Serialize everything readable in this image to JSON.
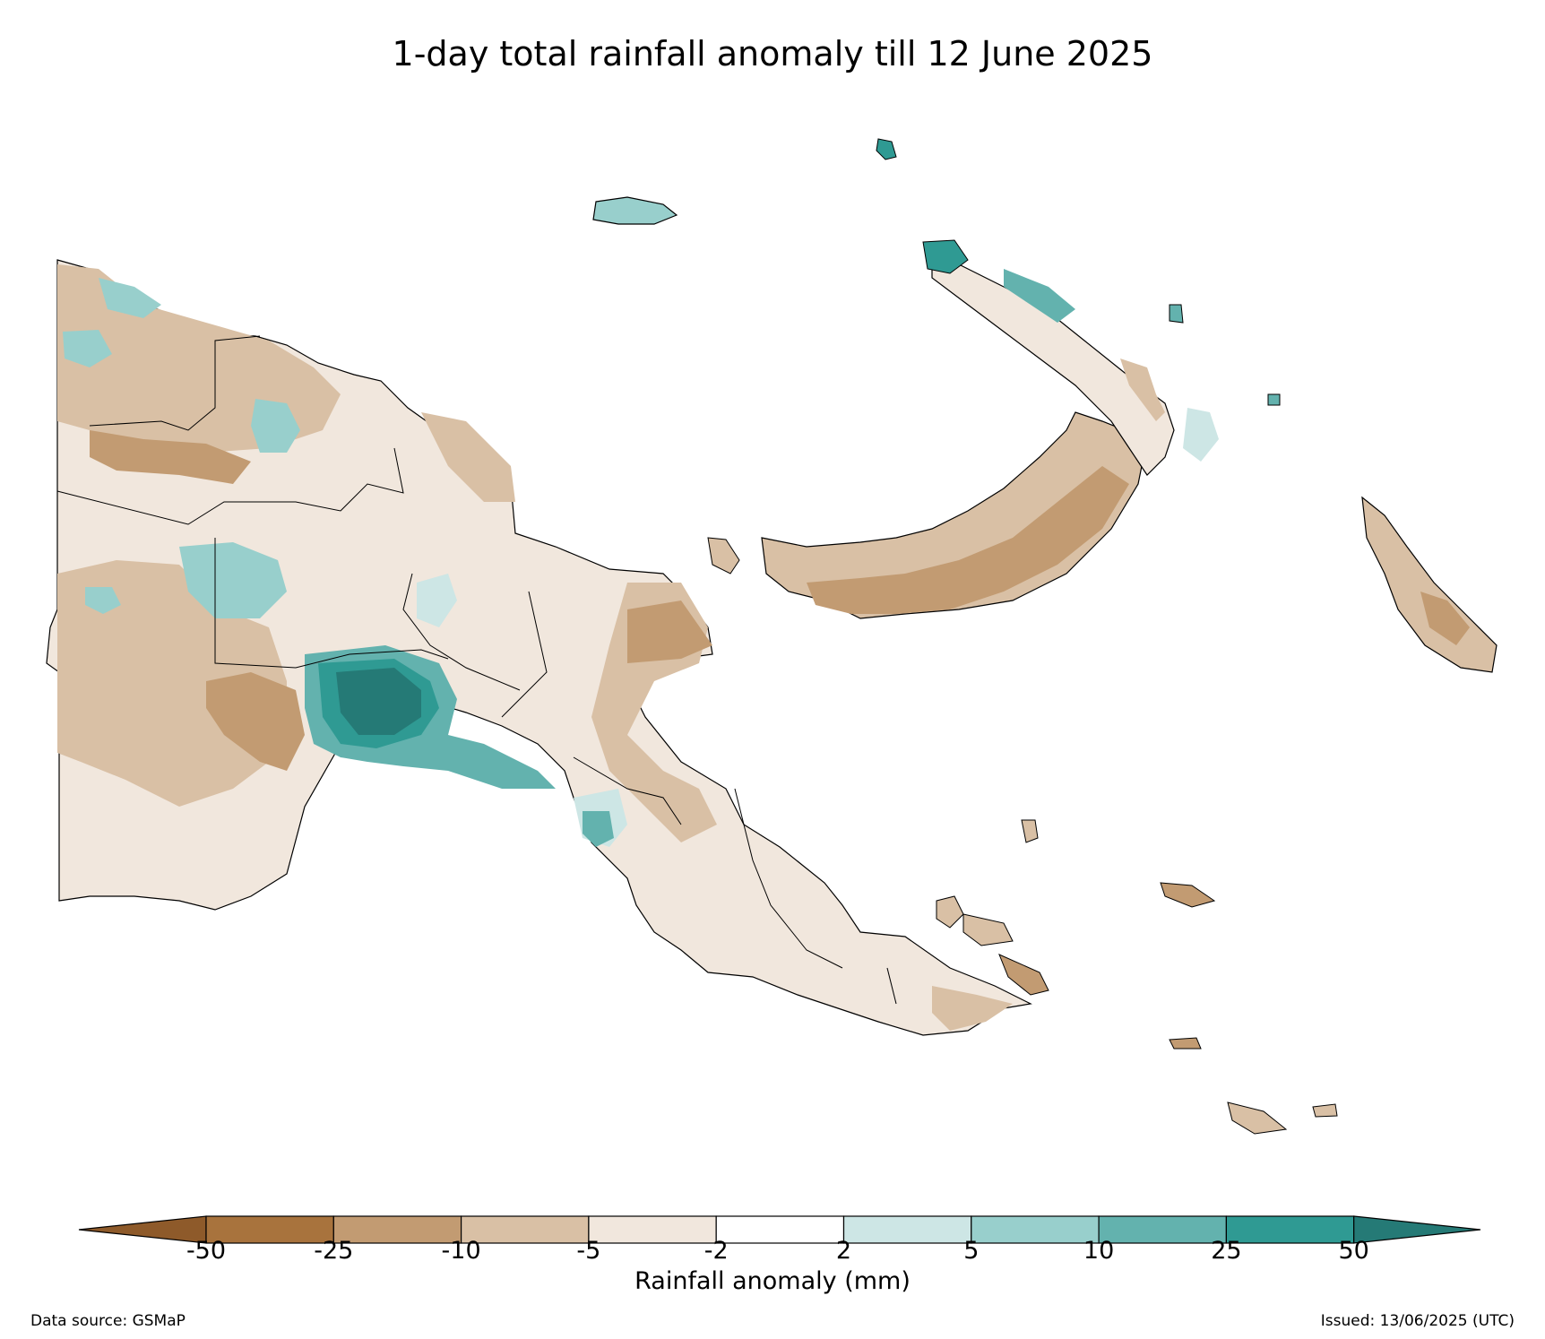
{
  "title": "1-day total rainfall anomaly till 12 June 2025",
  "legend": {
    "label": "Rainfall anomaly (mm)",
    "ticks": [
      "-50",
      "-25",
      "-10",
      "-5",
      "-2",
      "2",
      "5",
      "10",
      "25",
      "50"
    ],
    "colors": {
      "lt_neg50": "#8e5a2a",
      "neg50_neg25": "#a8733d",
      "neg25_neg10": "#c29b72",
      "neg10_neg5": "#d9c0a5",
      "neg5_neg2": "#f1e7dd",
      "neg2_2": "#ffffff",
      "2_5": "#cde6e5",
      "5_10": "#98cfcc",
      "10_25": "#63b2ae",
      "25_50": "#2f9a93",
      "gt_50": "#257a76"
    }
  },
  "footer": {
    "source": "Data source: GSMaP",
    "issued": "Issued: 13/06/2025 (UTC)"
  }
}
